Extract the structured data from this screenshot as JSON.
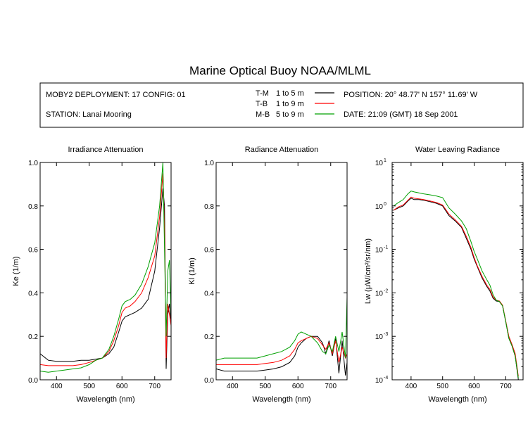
{
  "title": "Marine Optical Buoy NOAA/MLML",
  "info": {
    "deployment": "MOBY2 DEPLOYMENT: 17 CONFIG: 01",
    "station": "STATION: Lanai Mooring",
    "position": "POSITION: 20° 48.77' N   157° 11.69' W",
    "date": "DATE: 21:09 (GMT) 18 Sep 2001"
  },
  "legend": [
    {
      "key": "T-M",
      "range": "1 to 5  m",
      "color": "#000000"
    },
    {
      "key": "T-B",
      "range": "1 to 9  m",
      "color": "#ff0000"
    },
    {
      "key": "M-B",
      "range": "5 to 9  m",
      "color": "#00a000"
    }
  ],
  "chart_data": [
    {
      "type": "line",
      "title": "Irradiance Attenuation",
      "xlabel": "Wavelength (nm)",
      "ylabel": "Ke  (1/m)",
      "xlim": [
        350,
        750
      ],
      "ylim": [
        0,
        1.0
      ],
      "x_ticks": [
        400,
        500,
        600,
        700
      ],
      "y_ticks": [
        0.0,
        0.2,
        0.4,
        0.6,
        0.8,
        1.0
      ],
      "y_tick_labels": [
        "0.0",
        "0.2",
        "0.4",
        "0.6",
        "0.8",
        "1.0"
      ],
      "x": [
        350,
        375,
        400,
        425,
        450,
        475,
        500,
        520,
        540,
        560,
        575,
        590,
        600,
        610,
        625,
        640,
        660,
        680,
        700,
        715,
        725,
        730,
        735,
        740,
        745,
        750
      ],
      "series": [
        {
          "key": "T-M",
          "color": "#000000",
          "values": [
            0.12,
            0.09,
            0.085,
            0.085,
            0.085,
            0.09,
            0.09,
            0.095,
            0.1,
            0.12,
            0.15,
            0.22,
            0.27,
            0.29,
            0.3,
            0.31,
            0.33,
            0.37,
            0.5,
            0.7,
            0.88,
            0.8,
            0.05,
            0.3,
            0.35,
            0.27
          ]
        },
        {
          "key": "T-B",
          "color": "#ff0000",
          "values": [
            0.07,
            0.065,
            0.065,
            0.065,
            0.065,
            0.07,
            0.08,
            0.09,
            0.1,
            0.13,
            0.18,
            0.25,
            0.31,
            0.33,
            0.34,
            0.36,
            0.4,
            0.47,
            0.57,
            0.75,
            0.95,
            0.7,
            0.1,
            0.35,
            0.3,
            0.25
          ]
        },
        {
          "key": "M-B",
          "color": "#00a000",
          "values": [
            0.04,
            0.035,
            0.04,
            0.045,
            0.05,
            0.055,
            0.07,
            0.09,
            0.1,
            0.14,
            0.2,
            0.28,
            0.34,
            0.36,
            0.37,
            0.39,
            0.44,
            0.52,
            0.63,
            0.8,
            1.0,
            0.6,
            0.2,
            0.5,
            0.55,
            0.3
          ]
        }
      ]
    },
    {
      "type": "line",
      "title": "Radiance Attenuation",
      "xlabel": "Wavelength (nm)",
      "ylabel": "Kl  (1/m)",
      "xlim": [
        350,
        750
      ],
      "ylim": [
        0,
        1.0
      ],
      "x_ticks": [
        400,
        500,
        600,
        700
      ],
      "y_ticks": [
        0.0,
        0.2,
        0.4,
        0.6,
        0.8,
        1.0
      ],
      "y_tick_labels": [
        "0.0",
        "0.2",
        "0.4",
        "0.6",
        "0.8",
        "1.0"
      ],
      "x": [
        350,
        375,
        400,
        425,
        450,
        475,
        500,
        525,
        550,
        575,
        590,
        600,
        610,
        625,
        640,
        660,
        675,
        685,
        695,
        705,
        715,
        725,
        735,
        745,
        750
      ],
      "series": [
        {
          "key": "T-M",
          "color": "#000000",
          "values": [
            0.05,
            0.04,
            0.04,
            0.04,
            0.04,
            0.04,
            0.045,
            0.05,
            0.06,
            0.08,
            0.11,
            0.15,
            0.17,
            0.19,
            0.2,
            0.2,
            0.17,
            0.12,
            0.18,
            0.11,
            0.19,
            0.03,
            0.18,
            0.02,
            0.08
          ]
        },
        {
          "key": "T-B",
          "color": "#ff0000",
          "values": [
            0.07,
            0.07,
            0.07,
            0.07,
            0.07,
            0.07,
            0.075,
            0.08,
            0.09,
            0.11,
            0.14,
            0.17,
            0.18,
            0.19,
            0.2,
            0.19,
            0.16,
            0.14,
            0.17,
            0.12,
            0.18,
            0.08,
            0.15,
            0.1,
            0.12
          ]
        },
        {
          "key": "M-B",
          "color": "#00a000",
          "values": [
            0.09,
            0.1,
            0.1,
            0.1,
            0.1,
            0.1,
            0.11,
            0.12,
            0.13,
            0.15,
            0.18,
            0.21,
            0.22,
            0.21,
            0.2,
            0.17,
            0.13,
            0.12,
            0.16,
            0.13,
            0.2,
            0.13,
            0.22,
            0.1,
            0.38
          ]
        }
      ]
    },
    {
      "type": "line",
      "title": "Water Leaving Radiance",
      "xlabel": "Wavelength (nm)",
      "ylabel": "Lw  (μW/cm²/sr/nm)",
      "y_scale": "log",
      "xlim": [
        340,
        755
      ],
      "ylim": [
        0.0001,
        10
      ],
      "x_ticks": [
        400,
        500,
        600,
        700
      ],
      "y_ticks": [
        0.0001,
        0.001,
        0.01,
        0.1,
        1,
        10
      ],
      "y_tick_labels": [
        {
          "base": "10",
          "exp": "-4"
        },
        {
          "base": "10",
          "exp": "-3"
        },
        {
          "base": "10",
          "exp": "-2"
        },
        {
          "base": "10",
          "exp": "-1"
        },
        {
          "base": "10",
          "exp": "0"
        },
        {
          "base": "10",
          "exp": "1"
        }
      ],
      "x": [
        345,
        360,
        375,
        390,
        400,
        410,
        425,
        440,
        460,
        480,
        500,
        520,
        540,
        560,
        575,
        590,
        600,
        610,
        625,
        640,
        650,
        660,
        670,
        680,
        690,
        700,
        710,
        720,
        730,
        740
      ],
      "series": [
        {
          "key": "T-M",
          "color": "#000000",
          "values": [
            0.8,
            0.9,
            1.0,
            1.3,
            1.5,
            1.4,
            1.4,
            1.35,
            1.25,
            1.15,
            1.0,
            0.6,
            0.45,
            0.32,
            0.18,
            0.1,
            0.06,
            0.04,
            0.022,
            0.014,
            0.011,
            0.0075,
            0.0065,
            0.0063,
            0.005,
            0.0022,
            0.0009,
            0.0006,
            0.00035,
            0.0001
          ]
        },
        {
          "key": "T-B",
          "color": "#ff0000",
          "values": [
            0.8,
            0.95,
            1.05,
            1.35,
            1.6,
            1.5,
            1.45,
            1.4,
            1.3,
            1.2,
            1.05,
            0.65,
            0.48,
            0.34,
            0.2,
            0.11,
            0.065,
            0.042,
            0.024,
            0.015,
            0.012,
            0.008,
            0.0068,
            0.0065,
            0.0052,
            0.0023,
            0.001,
            0.00065,
            0.0004,
            0.00012
          ]
        },
        {
          "key": "M-B",
          "color": "#00a000",
          "values": [
            1.0,
            1.2,
            1.4,
            1.9,
            2.2,
            2.1,
            2.0,
            1.9,
            1.8,
            1.7,
            1.55,
            0.9,
            0.65,
            0.45,
            0.3,
            0.15,
            0.09,
            0.06,
            0.032,
            0.02,
            0.015,
            0.009,
            0.0068,
            0.0063,
            0.005,
            0.0022,
            0.0009,
            0.0006,
            0.00035,
            0.00011
          ]
        }
      ]
    }
  ]
}
